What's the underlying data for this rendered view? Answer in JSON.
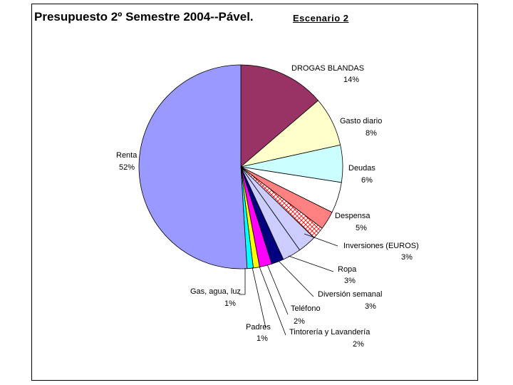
{
  "chart_data": {
    "type": "pie",
    "title": "Presupuesto 2º Semestre 2004--Pável.",
    "subtitle": "Escenario 2",
    "slices": [
      {
        "label": "DROGAS BLANDAS",
        "value": 14,
        "pct_label": "14%",
        "color": "#993366"
      },
      {
        "label": "Gasto diario",
        "value": 8,
        "pct_label": "8%",
        "color": "#ffffcc"
      },
      {
        "label": "Deudas",
        "value": 6,
        "pct_label": "6%",
        "color": "#ccffff"
      },
      {
        "label": "Despensa",
        "value": 5,
        "pct_label": "5%",
        "color": "#ffffff"
      },
      {
        "label": "Inversiones (EUROS)",
        "value": 3,
        "pct_label": "3%",
        "color": "#ff8080"
      },
      {
        "label": "",
        "value": 2,
        "pct_label": "",
        "color": "#ffffff",
        "pattern": "crosshatch-red"
      },
      {
        "label": "Ropa",
        "value": 3,
        "pct_label": "3%",
        "color": "#ccccff"
      },
      {
        "label": "Diversión semanal",
        "value": 3,
        "pct_label": "3%",
        "color": "#ccccff"
      },
      {
        "label": "Teléfono",
        "value": 2,
        "pct_label": "2%",
        "color": "#000080"
      },
      {
        "label": "Tintorería y Lavandería",
        "value": 2,
        "pct_label": "2%",
        "color": "#ff00ff"
      },
      {
        "label": "Padres",
        "value": 1,
        "pct_label": "1%",
        "color": "#ffff00"
      },
      {
        "label": "Gas, agua, luz",
        "value": 1,
        "pct_label": "1%",
        "color": "#00ffff"
      },
      {
        "label": "Renta",
        "value": 52,
        "pct_label": "52%",
        "color": "#9999ff"
      }
    ]
  }
}
